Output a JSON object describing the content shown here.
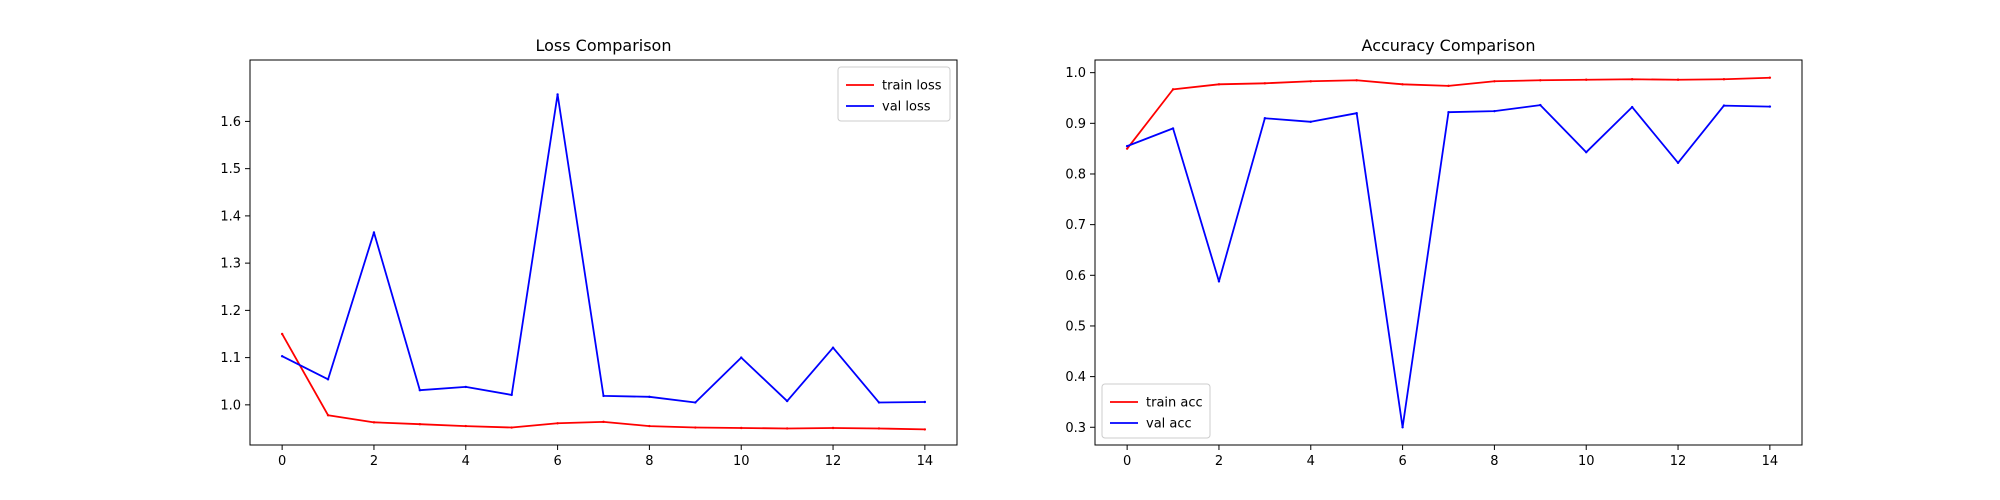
{
  "chart_data": [
    {
      "type": "line",
      "title": "Loss Comparison",
      "xlabel": "",
      "ylabel": "",
      "xlim": [
        -0.7,
        14.7
      ],
      "ylim": [
        0.915,
        1.73
      ],
      "xticks": [
        0,
        2,
        4,
        6,
        8,
        10,
        12,
        14
      ],
      "yticks": [
        1.0,
        1.1,
        1.2,
        1.3,
        1.4,
        1.5,
        1.6
      ],
      "grid": false,
      "legend_position": "top-right",
      "x": [
        0,
        1,
        2,
        3,
        4,
        5,
        6,
        7,
        8,
        9,
        10,
        11,
        12,
        13,
        14
      ],
      "series": [
        {
          "name": "train loss",
          "color": "#ff0000",
          "values": [
            1.15,
            0.978,
            0.963,
            0.959,
            0.955,
            0.952,
            0.961,
            0.964,
            0.955,
            0.952,
            0.951,
            0.95,
            0.951,
            0.95,
            0.948
          ]
        },
        {
          "name": "val loss",
          "color": "#0000ff",
          "values": [
            1.103,
            1.054,
            1.365,
            1.031,
            1.038,
            1.021,
            1.657,
            1.019,
            1.017,
            1.005,
            1.1,
            1.008,
            1.121,
            1.005,
            1.006
          ]
        }
      ]
    },
    {
      "type": "line",
      "title": "Accuracy Comparison",
      "xlabel": "",
      "ylabel": "",
      "xlim": [
        -0.7,
        14.7
      ],
      "ylim": [
        0.265,
        1.025
      ],
      "xticks": [
        0,
        2,
        4,
        6,
        8,
        10,
        12,
        14
      ],
      "yticks": [
        0.3,
        0.4,
        0.5,
        0.6,
        0.7,
        0.8,
        0.9,
        1.0
      ],
      "grid": false,
      "legend_position": "bottom-left",
      "x": [
        0,
        1,
        2,
        3,
        4,
        5,
        6,
        7,
        8,
        9,
        10,
        11,
        12,
        13,
        14
      ],
      "series": [
        {
          "name": "train acc",
          "color": "#ff0000",
          "values": [
            0.85,
            0.967,
            0.977,
            0.979,
            0.983,
            0.985,
            0.977,
            0.974,
            0.983,
            0.985,
            0.986,
            0.987,
            0.986,
            0.987,
            0.99
          ]
        },
        {
          "name": "val acc",
          "color": "#0000ff",
          "values": [
            0.855,
            0.89,
            0.588,
            0.91,
            0.903,
            0.92,
            0.3,
            0.922,
            0.924,
            0.936,
            0.843,
            0.932,
            0.822,
            0.935,
            0.933
          ]
        }
      ]
    }
  ]
}
